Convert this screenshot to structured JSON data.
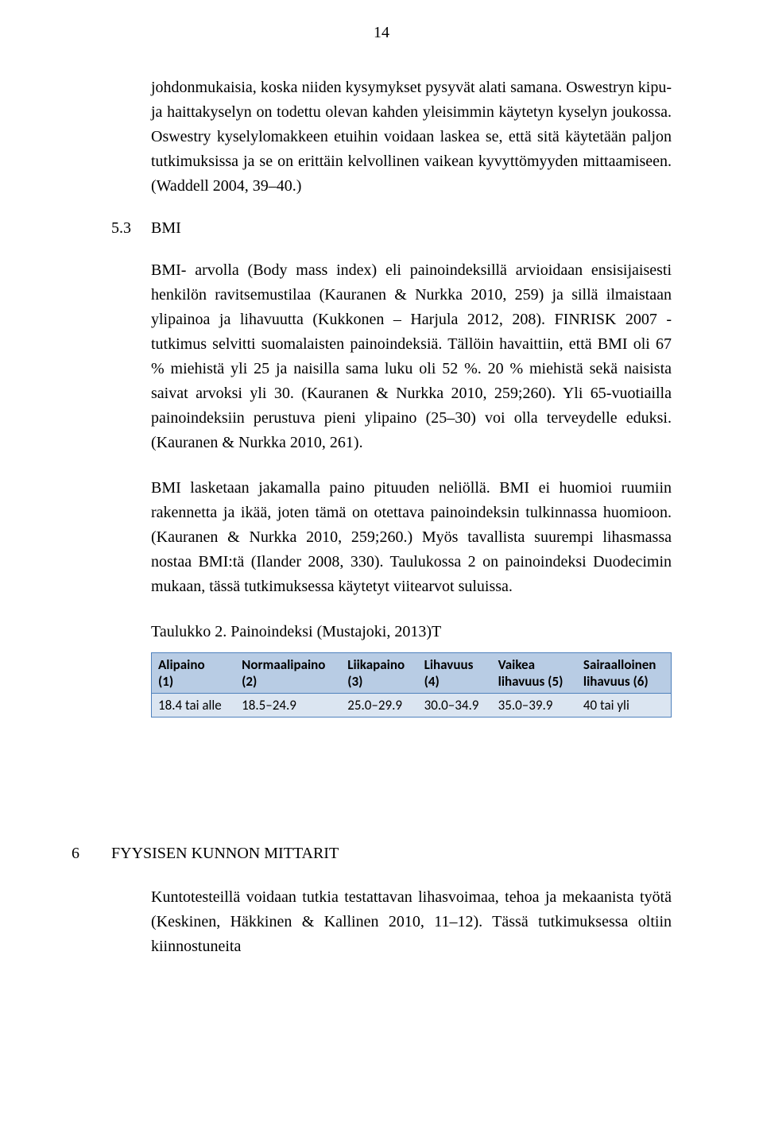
{
  "page_number": "14",
  "para_intro": "johdonmukaisia, koska niiden kysymykset pysyvät alati samana. Oswestryn kipu- ja haittakyselyn on todettu olevan kahden yleisimmin käytetyn kyselyn joukossa. Oswestry kyselylomakkeen etuihin voidaan laskea se, että sitä käytetään paljon tutkimuksissa ja se on erittäin kelvollinen vaikean kyvyttömyyden mittaamiseen. (Waddell 2004, 39–40.)",
  "sec53": {
    "num": "5.3",
    "title": "BMI"
  },
  "para_bmi1": "BMI- arvolla (Body mass index) eli painoindeksillä arvioidaan ensisijaisesti henkilön ravitsemustilaa (Kauranen & Nurkka 2010, 259) ja sillä ilmaistaan ylipainoa ja lihavuutta (Kukkonen – Harjula 2012, 208). FINRISK 2007 - tutkimus selvitti suomalaisten painoindeksiä. Tällöin havaittiin, että BMI oli 67 % miehistä yli 25 ja naisilla sama luku oli 52 %. 20 % miehistä sekä naisista saivat arvoksi yli 30. (Kauranen & Nurkka 2010, 259;260). Yli 65-vuotiailla painoindeksiin perustuva pieni ylipaino (25–30) voi olla terveydelle eduksi. (Kauranen & Nurkka 2010, 261).",
  "para_bmi2": "BMI lasketaan jakamalla paino pituuden neliöllä. BMI ei huomioi ruumiin rakennetta ja ikää, joten tämä on otettava painoindeksin tulkinnassa huomioon. (Kauranen & Nurkka 2010, 259;260.) Myös tavallista suurempi lihasmassa nostaa BMI:tä (Ilander 2008, 330). Taulukossa 2 on painoindeksi Duodecimin mukaan, tässä tutkimuksessa käytetyt viitearvot suluissa.",
  "table_caption": "Taulukko 2. Painoindeksi (Mustajoki, 2013)T",
  "table": {
    "header_bg": "#b8cce4",
    "body_bg": "#dbe5f1",
    "border_color": "#4f81bd",
    "header_fontsize": 17,
    "body_fontsize": 17,
    "columns": [
      {
        "line1": "Alipaino",
        "line2": "(1)"
      },
      {
        "line1": "Normaalipaino",
        "line2": "(2)"
      },
      {
        "line1": "Liikapaino",
        "line2": "(3)"
      },
      {
        "line1": "Lihavuus",
        "line2": "(4)"
      },
      {
        "line1": "Vaikea",
        "line2": "lihavuus (5)"
      },
      {
        "line1": "Sairaalloinen",
        "line2": "lihavuus (6)"
      }
    ],
    "row": [
      "18.4 tai alle",
      "18.5–24.9",
      "25.0–29.9",
      "30.0–34.9",
      "35.0–39.9",
      "40 tai yli"
    ]
  },
  "sec6": {
    "num": "6",
    "title": "FYYSISEN KUNNON MITTARIT"
  },
  "para_sec6": "Kuntotesteillä voidaan tutkia testattavan lihasvoimaa, tehoa ja mekaanista työtä (Keskinen, Häkkinen & Kallinen 2010, 11–12). Tässä tutkimuksessa oltiin kiinnostuneita"
}
